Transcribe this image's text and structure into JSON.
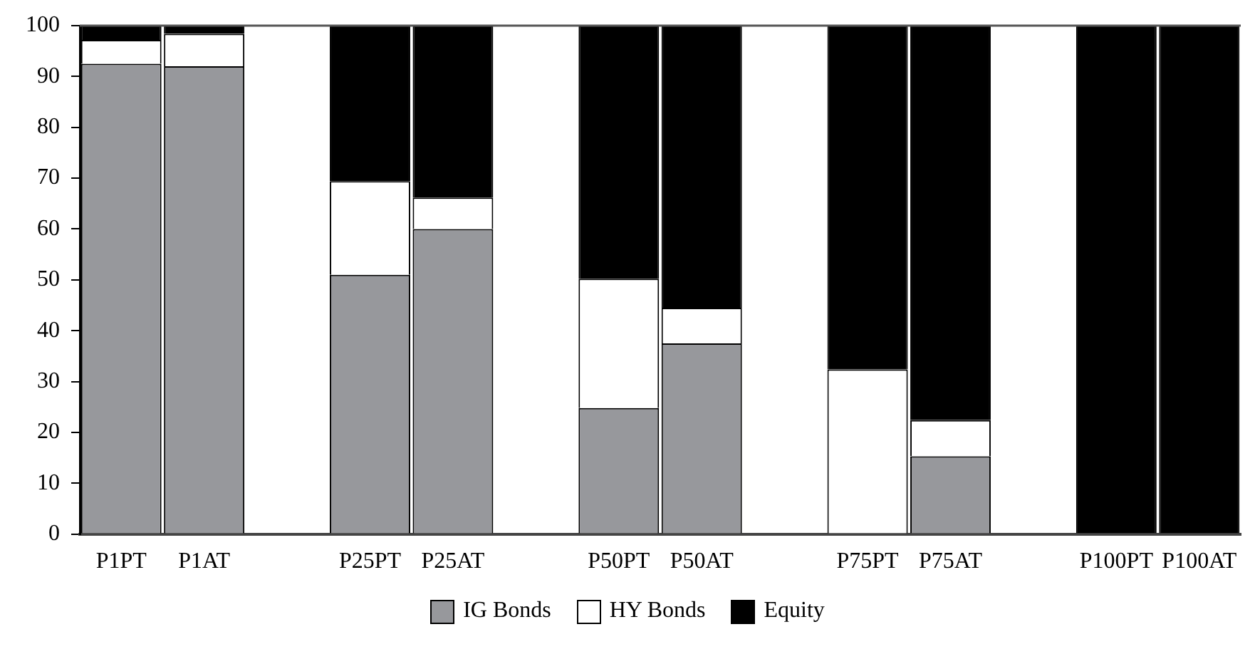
{
  "chart_data": {
    "type": "bar",
    "stacked": true,
    "categories": [
      "P1PT",
      "P1AT",
      null,
      "P25PT",
      "P25AT",
      null,
      "P50PT",
      "P50AT",
      null,
      "P75PT",
      "P75AT",
      null,
      "P100PT",
      "P100AT"
    ],
    "series": [
      {
        "name": "IG Bonds",
        "color": "#97989c",
        "values": [
          92.5,
          92,
          null,
          51,
          60,
          null,
          24.8,
          37.5,
          null,
          0,
          15.3,
          null,
          0,
          0
        ]
      },
      {
        "name": "HY Bonds",
        "color": "#ffffff",
        "values": [
          4.7,
          6.4,
          null,
          18.4,
          6.2,
          null,
          25.4,
          7,
          null,
          32.4,
          7.1,
          null,
          0,
          0
        ]
      },
      {
        "name": "Equity",
        "color": "#000000",
        "values": [
          2.8,
          1.6,
          null,
          30.6,
          33.8,
          null,
          49.8,
          55.5,
          null,
          67.6,
          77.6,
          null,
          100,
          100
        ]
      }
    ],
    "ylim": [
      0,
      100
    ],
    "yticks": [
      0,
      10,
      20,
      30,
      40,
      50,
      60,
      70,
      80,
      90,
      100
    ],
    "grid": false,
    "legend": "bottom"
  }
}
